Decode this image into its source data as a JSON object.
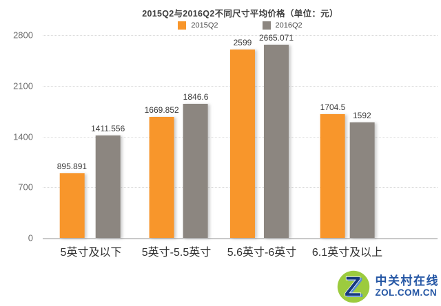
{
  "title": "2015Q2与2016Q2不同尺寸平均价格（单位：元）",
  "chart_data": {
    "type": "bar",
    "title": "2015Q2与2016Q2不同尺寸平均价格（单位：元）",
    "categories": [
      "5英寸及以下",
      "5英寸-5.5英寸",
      "5.6英寸-6英寸",
      "6.1英寸及以上"
    ],
    "series": [
      {
        "name": "2015Q2",
        "color": "#F8962B",
        "values": [
          895.891,
          1669.852,
          2599,
          1704.5
        ],
        "labels": [
          "895.891",
          "1669.852",
          "2599",
          "1704.5"
        ]
      },
      {
        "name": "2016Q2",
        "color": "#8C8680",
        "values": [
          1411.556,
          1846.6,
          2665.071,
          1592
        ],
        "labels": [
          "1411.556",
          "1846.6",
          "2665.071",
          "1592"
        ]
      }
    ],
    "xlabel": "",
    "ylabel": "",
    "ylim": [
      0,
      2800
    ],
    "yticks": [
      "2800",
      "2100",
      "1400",
      "700",
      "0"
    ],
    "grid": "horizontal-dotted",
    "legend_position": "top-center"
  },
  "watermark": {
    "cn": "中关村在线",
    "en": "ZOL.COM.CN",
    "brand_blue": "#2456A4",
    "brand_green": "#9CCB3E",
    "z_dark": "#16397F",
    "z_light": "#5B8FD4"
  }
}
